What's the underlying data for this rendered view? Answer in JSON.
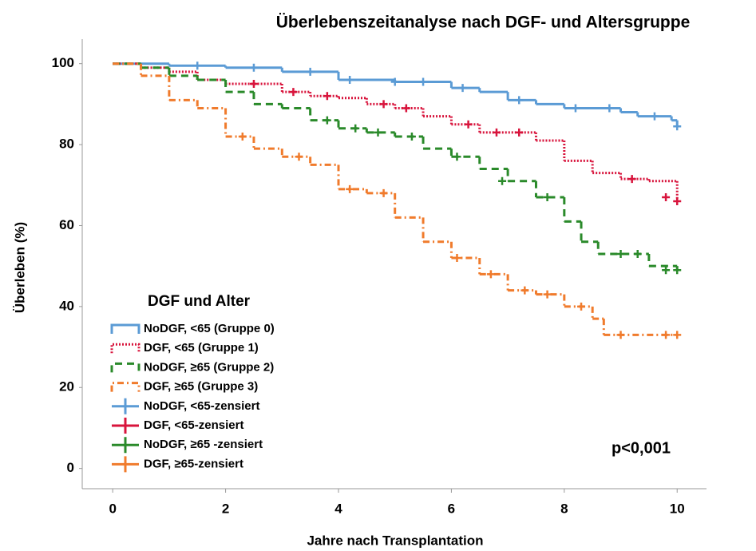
{
  "chart_data": {
    "type": "kaplan-meier",
    "title": "Überlebenszeitanalyse nach DGF- und Altersgruppe",
    "x_label": "Jahre nach Transplantation",
    "y_label": "Überleben (%)",
    "legend_title": "DGF und Alter",
    "annotation": "p<0,001",
    "xlim": [
      -0.54,
      10.52
    ],
    "ylim": [
      -5,
      110
    ],
    "xticks": [
      0,
      2,
      4,
      6,
      8,
      10
    ],
    "yticks": [
      0,
      20,
      40,
      60,
      80,
      100
    ],
    "series": [
      {
        "name": "NoDGF, <65 (Gruppe 0)",
        "color": "#5b9bd5",
        "style": "solid",
        "x": [
          0,
          1,
          2,
          3,
          4,
          5,
          6,
          6.5,
          7,
          7.5,
          8,
          9,
          9.3,
          9.9,
          10
        ],
        "values": [
          100,
          99.5,
          99,
          98,
          96,
          95.5,
          94,
          93,
          91,
          90,
          89,
          88,
          87,
          86,
          84.5
        ]
      },
      {
        "name": "DGF, <65 (Gruppe 1)",
        "color": "#d8143c",
        "style": "dotted",
        "x": [
          0,
          0.5,
          1,
          1.5,
          2,
          3,
          3.5,
          4,
          4.5,
          5,
          5.5,
          6,
          6.5,
          7.5,
          8,
          8.5,
          9,
          9.5,
          10
        ],
        "values": [
          100,
          99,
          98,
          96,
          95,
          93,
          92,
          91.5,
          90,
          89,
          87,
          85,
          83,
          81,
          76,
          73,
          71.5,
          71,
          66
        ]
      },
      {
        "name": "NoDGF, ≥65 (Gruppe 2)",
        "color": "#2a8a2a",
        "style": "dashed",
        "x": [
          0,
          0.5,
          1,
          1.5,
          2,
          2.5,
          3,
          3.5,
          4,
          4.5,
          5,
          5.5,
          6,
          6.5,
          7,
          7.5,
          8,
          8.3,
          8.6,
          9.5,
          10
        ],
        "values": [
          100,
          99,
          97,
          96,
          93,
          90,
          89,
          86,
          84,
          83,
          82,
          79,
          77,
          74,
          71,
          67,
          61,
          56,
          53,
          50,
          49
        ]
      },
      {
        "name": "DGF, ≥65 (Gruppe 3)",
        "color": "#f07b2c",
        "style": "dashdot",
        "x": [
          0,
          0.5,
          1,
          1.5,
          2,
          2.5,
          3,
          3.5,
          4,
          4.5,
          5,
          5.5,
          6,
          6.5,
          7,
          7.5,
          8,
          8.5,
          8.7,
          10
        ],
        "values": [
          100,
          97,
          91,
          89,
          82,
          79,
          77,
          75,
          69,
          68,
          62,
          56,
          52,
          48,
          44,
          43,
          40,
          37,
          33,
          33
        ]
      },
      {
        "name": "NoDGF, <65-zensiert",
        "color": "#5b9bd5",
        "marker": "+",
        "x": [
          1.5,
          2.5,
          3.5,
          4.2,
          5,
          5.5,
          6.2,
          7.2,
          8.2,
          8.8,
          9.6,
          10
        ],
        "values": [
          99.5,
          99,
          98,
          96,
          95.5,
          95.5,
          94,
          91,
          89,
          89,
          87,
          84.5
        ]
      },
      {
        "name": "DGF, <65-zensiert",
        "color": "#d8143c",
        "marker": "+",
        "x": [
          2.5,
          3.2,
          3.8,
          4.8,
          5.2,
          6.3,
          6.8,
          7.2,
          9.2,
          9.8,
          10
        ],
        "values": [
          95,
          93,
          92,
          90,
          89,
          85,
          83,
          83,
          71.5,
          67,
          66
        ]
      },
      {
        "name": "NoDGF, ≥65 -zensiert",
        "color": "#2a8a2a",
        "marker": "+",
        "x": [
          3.8,
          4.3,
          4.7,
          5.3,
          6.1,
          6.9,
          7.7,
          9,
          9.3,
          9.8,
          10
        ],
        "values": [
          86,
          84,
          83,
          82,
          77,
          71,
          67,
          53,
          53,
          49,
          49
        ]
      },
      {
        "name": "DGF, ≥65-zensiert",
        "color": "#f07b2c",
        "marker": "+",
        "x": [
          2.3,
          3.3,
          4.2,
          4.8,
          6.1,
          6.7,
          7.3,
          7.7,
          8.3,
          9,
          9.8,
          10
        ],
        "values": [
          82,
          77,
          69,
          68,
          52,
          48,
          44,
          43,
          40,
          33,
          33,
          33
        ]
      }
    ]
  }
}
